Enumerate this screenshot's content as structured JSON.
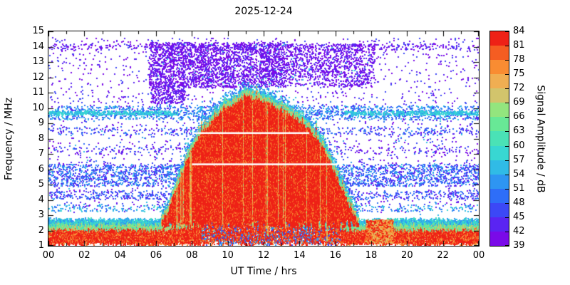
{
  "chart_data": {
    "type": "heatmap",
    "title": "2025-12-24",
    "xlabel": "UT Time / hrs",
    "ylabel": "Frequency / MHz",
    "x_range": [
      0,
      24
    ],
    "x_minor_tick_step": 1,
    "x_tick_labels": [
      {
        "v": 0,
        "label": "00"
      },
      {
        "v": 2,
        "label": "02"
      },
      {
        "v": 4,
        "label": "04"
      },
      {
        "v": 6,
        "label": "06"
      },
      {
        "v": 8,
        "label": "08"
      },
      {
        "v": 10,
        "label": "10"
      },
      {
        "v": 12,
        "label": "12"
      },
      {
        "v": 14,
        "label": "14"
      },
      {
        "v": 16,
        "label": "16"
      },
      {
        "v": 18,
        "label": "18"
      },
      {
        "v": 20,
        "label": "20"
      },
      {
        "v": 22,
        "label": "22"
      },
      {
        "v": 24,
        "label": "00"
      }
    ],
    "y_range": [
      1,
      15
    ],
    "y_ticks": [
      1,
      2,
      3,
      4,
      5,
      6,
      7,
      8,
      9,
      10,
      11,
      12,
      13,
      14,
      15
    ],
    "colorbar": {
      "label": "Signal Amplitude / dB",
      "min": 39,
      "max": 84,
      "tick_step": 3,
      "ticks": [
        39,
        42,
        45,
        48,
        51,
        54,
        57,
        60,
        63,
        66,
        69,
        72,
        75,
        78,
        81,
        84
      ],
      "band_colors": [
        "#7a0ae8",
        "#5a24f2",
        "#3c48f6",
        "#2e6ef8",
        "#2e95f2",
        "#30bbe6",
        "#38d7d2",
        "#4ae2b6",
        "#68e896",
        "#93e57e",
        "#d2c46c",
        "#f0ae52",
        "#f98c32",
        "#f55d22",
        "#ee2116"
      ]
    },
    "seed": 42,
    "features": {
      "speckle_layers": [
        {
          "name": "background-purple-noise",
          "x": [
            0,
            24
          ],
          "f": [
            3.2,
            14.6
          ],
          "n": 2300,
          "db": [
            39,
            47
          ],
          "size": 2
        },
        {
          "name": "background-cyan-noise",
          "x": [
            0,
            24
          ],
          "f": [
            3.0,
            10.5
          ],
          "n": 280,
          "db": [
            48,
            56
          ],
          "size": 2
        },
        {
          "name": "band-5-6MHz",
          "x": [
            0,
            24
          ],
          "f": [
            4.9,
            6.35
          ],
          "n": 2800,
          "db": [
            42,
            55
          ],
          "size": 2
        },
        {
          "name": "band-4.3MHz",
          "x": [
            0,
            24
          ],
          "f": [
            4.05,
            4.6
          ],
          "n": 750,
          "db": [
            42,
            52
          ],
          "size": 2
        },
        {
          "name": "band-9.7MHz",
          "x": [
            0,
            24
          ],
          "f": [
            9.25,
            10.15
          ],
          "n": 1500,
          "db": [
            45,
            57
          ],
          "size": 2
        },
        {
          "name": "line-9.7MHz-left",
          "x": [
            0,
            7.2
          ],
          "f": [
            9.55,
            9.8
          ],
          "n": 450,
          "db": [
            54,
            60
          ],
          "size": 2
        },
        {
          "name": "line-9.7MHz-right",
          "x": [
            16.5,
            24
          ],
          "f": [
            9.55,
            9.8
          ],
          "n": 450,
          "db": [
            54,
            60
          ],
          "size": 2
        },
        {
          "name": "band-8.5MHz",
          "x": [
            0,
            24
          ],
          "f": [
            8.25,
            8.75
          ],
          "n": 420,
          "db": [
            42,
            52
          ],
          "size": 2
        },
        {
          "name": "band-7.2MHz",
          "x": [
            0,
            24
          ],
          "f": [
            7.0,
            7.5
          ],
          "n": 260,
          "db": [
            39,
            49
          ],
          "size": 2
        },
        {
          "name": "band-14MHz",
          "x": [
            0,
            24
          ],
          "f": [
            13.8,
            14.2
          ],
          "n": 380,
          "db": [
            39,
            46
          ],
          "size": 2
        },
        {
          "name": "band-3.5MHz",
          "x": [
            0,
            24
          ],
          "f": [
            3.25,
            3.7
          ],
          "n": 420,
          "db": [
            48,
            58
          ],
          "size": 2
        },
        {
          "name": "daytime-hf-noise-dense",
          "x": [
            5.6,
            13.2
          ],
          "f": [
            11.35,
            14.3
          ],
          "n": 2600,
          "db": [
            39,
            44
          ],
          "size": 2
        },
        {
          "name": "daytime-hf-noise-sparse",
          "x": [
            13.2,
            18.2
          ],
          "f": [
            11.4,
            14.2
          ],
          "n": 1000,
          "db": [
            39,
            44
          ],
          "size": 2
        },
        {
          "name": "daytime-hf-noise-cyan",
          "x": [
            5.6,
            18.0
          ],
          "f": [
            11.5,
            14.2
          ],
          "n": 70,
          "db": [
            51,
            58
          ],
          "size": 2
        },
        {
          "name": "morning-flank-purple",
          "x": [
            5.7,
            7.6
          ],
          "f": [
            10.3,
            11.5
          ],
          "n": 260,
          "db": [
            39,
            45
          ],
          "size": 2
        }
      ],
      "low_band": {
        "f_min": 1.05,
        "f_base_top": 2.7,
        "midday_bulge": {
          "amp": 0.55,
          "center": 11.3,
          "width": 3.2
        },
        "weak_interval": [
          8.5,
          16.3
        ],
        "fringe_db": [
          51,
          62
        ],
        "mid_db": [
          60,
          72
        ],
        "core_db_max": 85,
        "blob": {
          "x": [
            17.7,
            19.2
          ],
          "f": [
            1.2,
            2.7
          ],
          "n": 1500,
          "db": [
            70,
            85
          ]
        }
      },
      "dome": {
        "x_hours": [
          6.3,
          6.7,
          7.0,
          7.4,
          7.8,
          8.2,
          8.6,
          9.0,
          9.4,
          9.8,
          10.2,
          10.6,
          11.0,
          11.5,
          12.0,
          12.5,
          13.0,
          13.5,
          14.0,
          14.5,
          15.0,
          15.5,
          16.0,
          16.5,
          17.0,
          17.3
        ],
        "f_top_mhz": [
          3.0,
          3.8,
          4.8,
          6.0,
          7.2,
          8.2,
          8.9,
          9.4,
          9.9,
          10.6,
          10.5,
          10.9,
          11.2,
          11.1,
          10.9,
          10.6,
          10.3,
          10.0,
          9.6,
          9.1,
          8.4,
          7.5,
          6.2,
          4.9,
          3.6,
          2.9
        ],
        "f_bottom_mhz": 2.45,
        "core_db": [
          75,
          85
        ],
        "fringe_db": [
          60,
          75
        ],
        "top_edge_db": [
          54,
          60
        ],
        "above_scatter_db": [
          48,
          58
        ],
        "column_step_hours": 0.025
      },
      "white_notches": [
        {
          "x": [
            8.0,
            14.55
          ],
          "f": [
            8.3,
            8.42
          ]
        },
        {
          "x": [
            8.0,
            16.1
          ],
          "f": [
            6.26,
            6.38
          ]
        }
      ]
    }
  }
}
